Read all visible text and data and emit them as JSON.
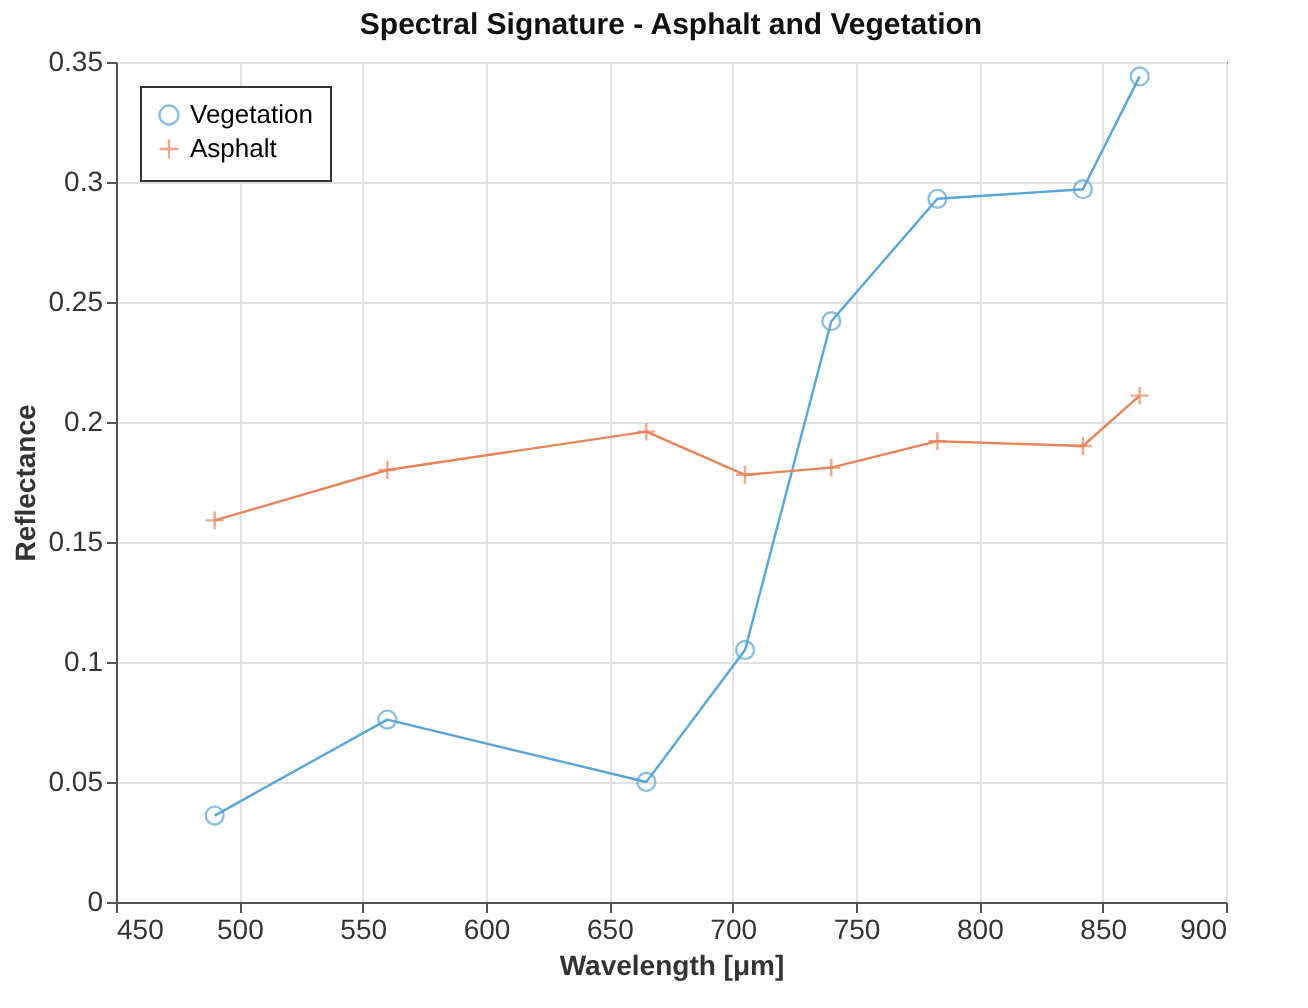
{
  "chart_data": {
    "type": "line",
    "title": "Spectral Signature - Asphalt and Vegetation",
    "xlabel": "Wavelength [μm]",
    "ylabel": "Reflectance",
    "x": [
      490,
      560,
      665,
      705,
      740,
      783,
      842,
      865
    ],
    "series": [
      {
        "name": "Vegetation",
        "color": "#5aa5d8",
        "marker": "circle",
        "values": [
          0.036,
          0.076,
          0.05,
          0.105,
          0.242,
          0.293,
          0.297,
          0.344
        ]
      },
      {
        "name": "Asphalt",
        "color": "#e8835a",
        "marker": "cross",
        "values": [
          0.159,
          0.18,
          0.196,
          0.178,
          0.181,
          0.192,
          0.19,
          0.211
        ]
      }
    ],
    "xlim": [
      450,
      900
    ],
    "xticks": [
      450,
      500,
      550,
      600,
      650,
      700,
      750,
      800,
      850,
      900
    ],
    "ylim": [
      0,
      0.35
    ],
    "yticks": [
      0,
      0.05,
      0.1,
      0.15,
      0.2,
      0.25,
      0.3,
      0.35
    ],
    "grid": true,
    "legend": "top left",
    "line_style": "solid"
  }
}
